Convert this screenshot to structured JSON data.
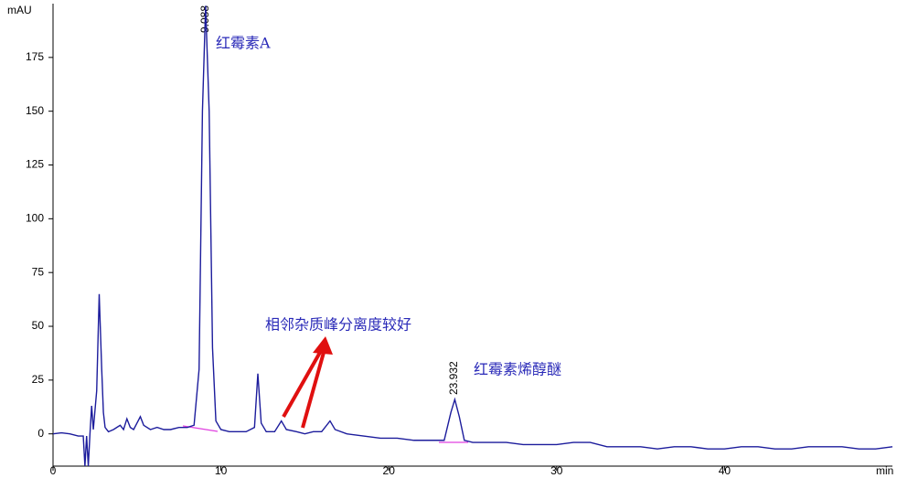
{
  "chart_data": {
    "type": "line",
    "y_label": "mAU",
    "x_label": "min",
    "xlim": [
      0,
      50
    ],
    "ylim": [
      -15,
      200
    ],
    "xticks": [
      0,
      10,
      20,
      30,
      40
    ],
    "yticks": [
      0,
      25,
      50,
      75,
      100,
      125,
      150,
      175
    ],
    "peak_labels": [
      "9.088",
      "23.932"
    ],
    "annotations": [
      "红霉素A",
      "相邻杂质峰分离度较好",
      "红霉素烯醇醚"
    ],
    "series": [
      {
        "color": "#1c1c9c",
        "x": [
          0,
          0.5,
          1,
          1.5,
          1.8,
          1.9,
          2.0,
          2.1,
          2.2,
          2.3,
          2.4,
          2.6,
          2.75,
          2.9,
          3.0,
          3.1,
          3.3,
          3.6,
          4.0,
          4.2,
          4.4,
          4.6,
          4.8,
          5.0,
          5.2,
          5.4,
          5.8,
          6.2,
          6.6,
          7.0,
          7.5,
          8.0,
          8.4,
          8.7,
          8.9,
          9.088,
          9.3,
          9.5,
          9.7,
          10,
          10.5,
          11,
          11.5,
          12.0,
          12.2,
          12.4,
          12.7,
          13.2,
          13.6,
          13.9,
          14.5,
          15,
          15.5,
          16.0,
          16.5,
          16.8,
          17.5,
          18.5,
          19.5,
          20.5,
          21.5,
          22.5,
          23.3,
          23.7,
          23.932,
          24.2,
          24.5,
          25,
          26,
          27,
          28,
          29,
          30,
          31,
          32,
          33,
          34,
          35,
          36,
          37,
          38,
          39,
          40,
          41,
          42,
          43,
          44,
          45,
          46,
          47,
          48,
          49,
          50
        ],
        "values": [
          0,
          0.5,
          0,
          -1,
          -1,
          -15,
          -1,
          -15,
          0,
          13,
          2,
          20,
          65,
          30,
          10,
          3,
          1,
          2,
          4,
          2,
          7,
          3,
          2,
          5,
          8,
          4,
          2,
          3,
          2,
          2,
          3,
          3,
          4,
          30,
          150,
          199,
          150,
          40,
          6,
          2,
          1,
          1,
          1,
          3,
          28,
          5,
          1,
          1,
          6,
          2,
          1,
          0,
          1,
          1,
          6,
          2,
          0,
          -1,
          -2,
          -2,
          -3,
          -3,
          -3,
          10,
          16,
          8,
          -3,
          -4,
          -4,
          -4,
          -5,
          -5,
          -5,
          -4,
          -4,
          -6,
          -6,
          -6,
          -7,
          -6,
          -6,
          -7,
          -7,
          -6,
          -6,
          -7,
          -7,
          -6,
          -6,
          -6,
          -7,
          -7,
          -6
        ]
      }
    ]
  }
}
